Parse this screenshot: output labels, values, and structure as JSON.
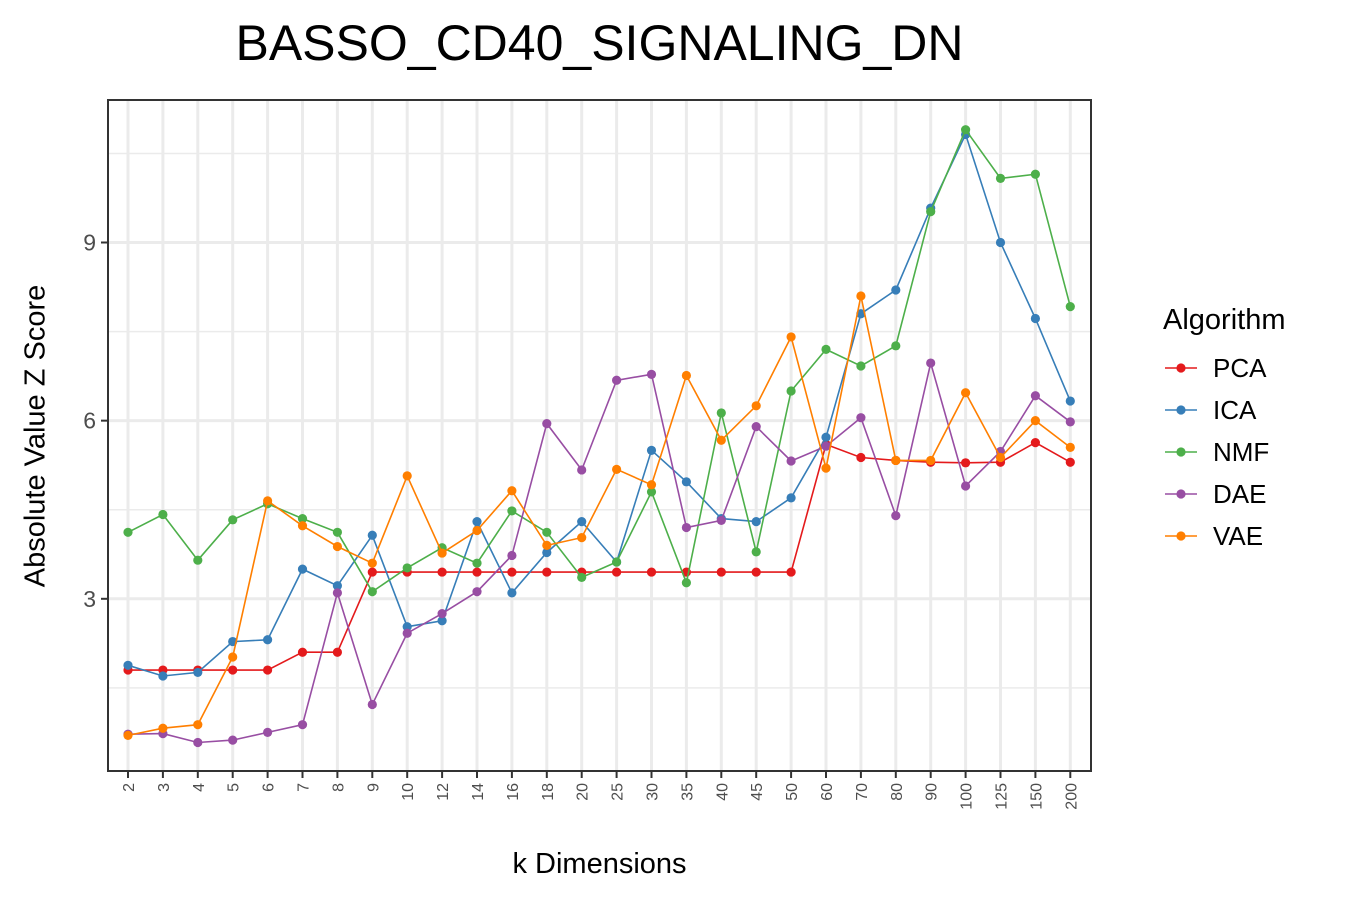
{
  "chart_data": {
    "type": "line",
    "title": "BASSO_CD40_SIGNALING_DN",
    "xlabel": "k Dimensions",
    "ylabel": "Absolute Value Z Score",
    "categories": [
      "2",
      "3",
      "4",
      "5",
      "6",
      "7",
      "8",
      "9",
      "10",
      "12",
      "14",
      "16",
      "18",
      "20",
      "25",
      "30",
      "35",
      "40",
      "45",
      "50",
      "60",
      "70",
      "80",
      "90",
      "100",
      "125",
      "150",
      "200"
    ],
    "y_ticks": [
      3,
      6,
      9
    ],
    "ylim": [
      0.1,
      11.4
    ],
    "grid": true,
    "legend": {
      "title": "Algorithm",
      "position": "right"
    },
    "series": [
      {
        "name": "PCA",
        "color": "#e41a1c",
        "values": [
          1.8,
          1.8,
          1.8,
          1.8,
          1.8,
          2.1,
          2.1,
          3.45,
          3.45,
          3.45,
          3.45,
          3.45,
          3.45,
          3.45,
          3.45,
          3.45,
          3.45,
          3.45,
          3.45,
          3.45,
          5.6,
          5.38,
          5.33,
          5.3,
          5.29,
          5.3,
          5.63,
          5.3
        ]
      },
      {
        "name": "ICA",
        "color": "#377eb8",
        "values": [
          1.88,
          1.7,
          1.76,
          2.28,
          2.31,
          3.5,
          3.22,
          4.07,
          2.53,
          2.63,
          4.3,
          3.1,
          3.78,
          4.3,
          3.62,
          5.5,
          4.97,
          4.35,
          4.3,
          4.7,
          5.72,
          7.8,
          8.2,
          9.58,
          10.82,
          9.0,
          7.72,
          6.33
        ]
      },
      {
        "name": "NMF",
        "color": "#4daf4a",
        "values": [
          4.12,
          4.42,
          3.65,
          4.33,
          4.6,
          4.35,
          4.12,
          3.12,
          3.52,
          3.86,
          3.6,
          4.48,
          4.12,
          3.36,
          3.62,
          4.8,
          3.27,
          6.13,
          3.79,
          6.5,
          7.2,
          6.92,
          7.26,
          9.52,
          10.9,
          10.08,
          10.15,
          7.92
        ]
      },
      {
        "name": "DAE",
        "color": "#984ea3",
        "values": [
          0.72,
          0.73,
          0.58,
          0.62,
          0.75,
          0.88,
          3.1,
          1.22,
          2.42,
          2.75,
          3.12,
          3.73,
          5.95,
          5.17,
          6.68,
          6.78,
          4.2,
          4.32,
          5.9,
          5.32,
          5.57,
          6.05,
          4.4,
          6.97,
          4.9,
          5.48,
          6.42,
          5.98
        ]
      },
      {
        "name": "VAE",
        "color": "#ff7f00",
        "values": [
          0.7,
          0.82,
          0.88,
          2.02,
          4.65,
          4.23,
          3.88,
          3.6,
          5.07,
          3.77,
          4.15,
          4.82,
          3.9,
          4.03,
          5.18,
          4.92,
          6.76,
          5.67,
          6.25,
          7.41,
          5.2,
          8.1,
          5.33,
          5.33,
          6.47,
          5.38,
          6.0,
          5.55
        ]
      }
    ]
  }
}
